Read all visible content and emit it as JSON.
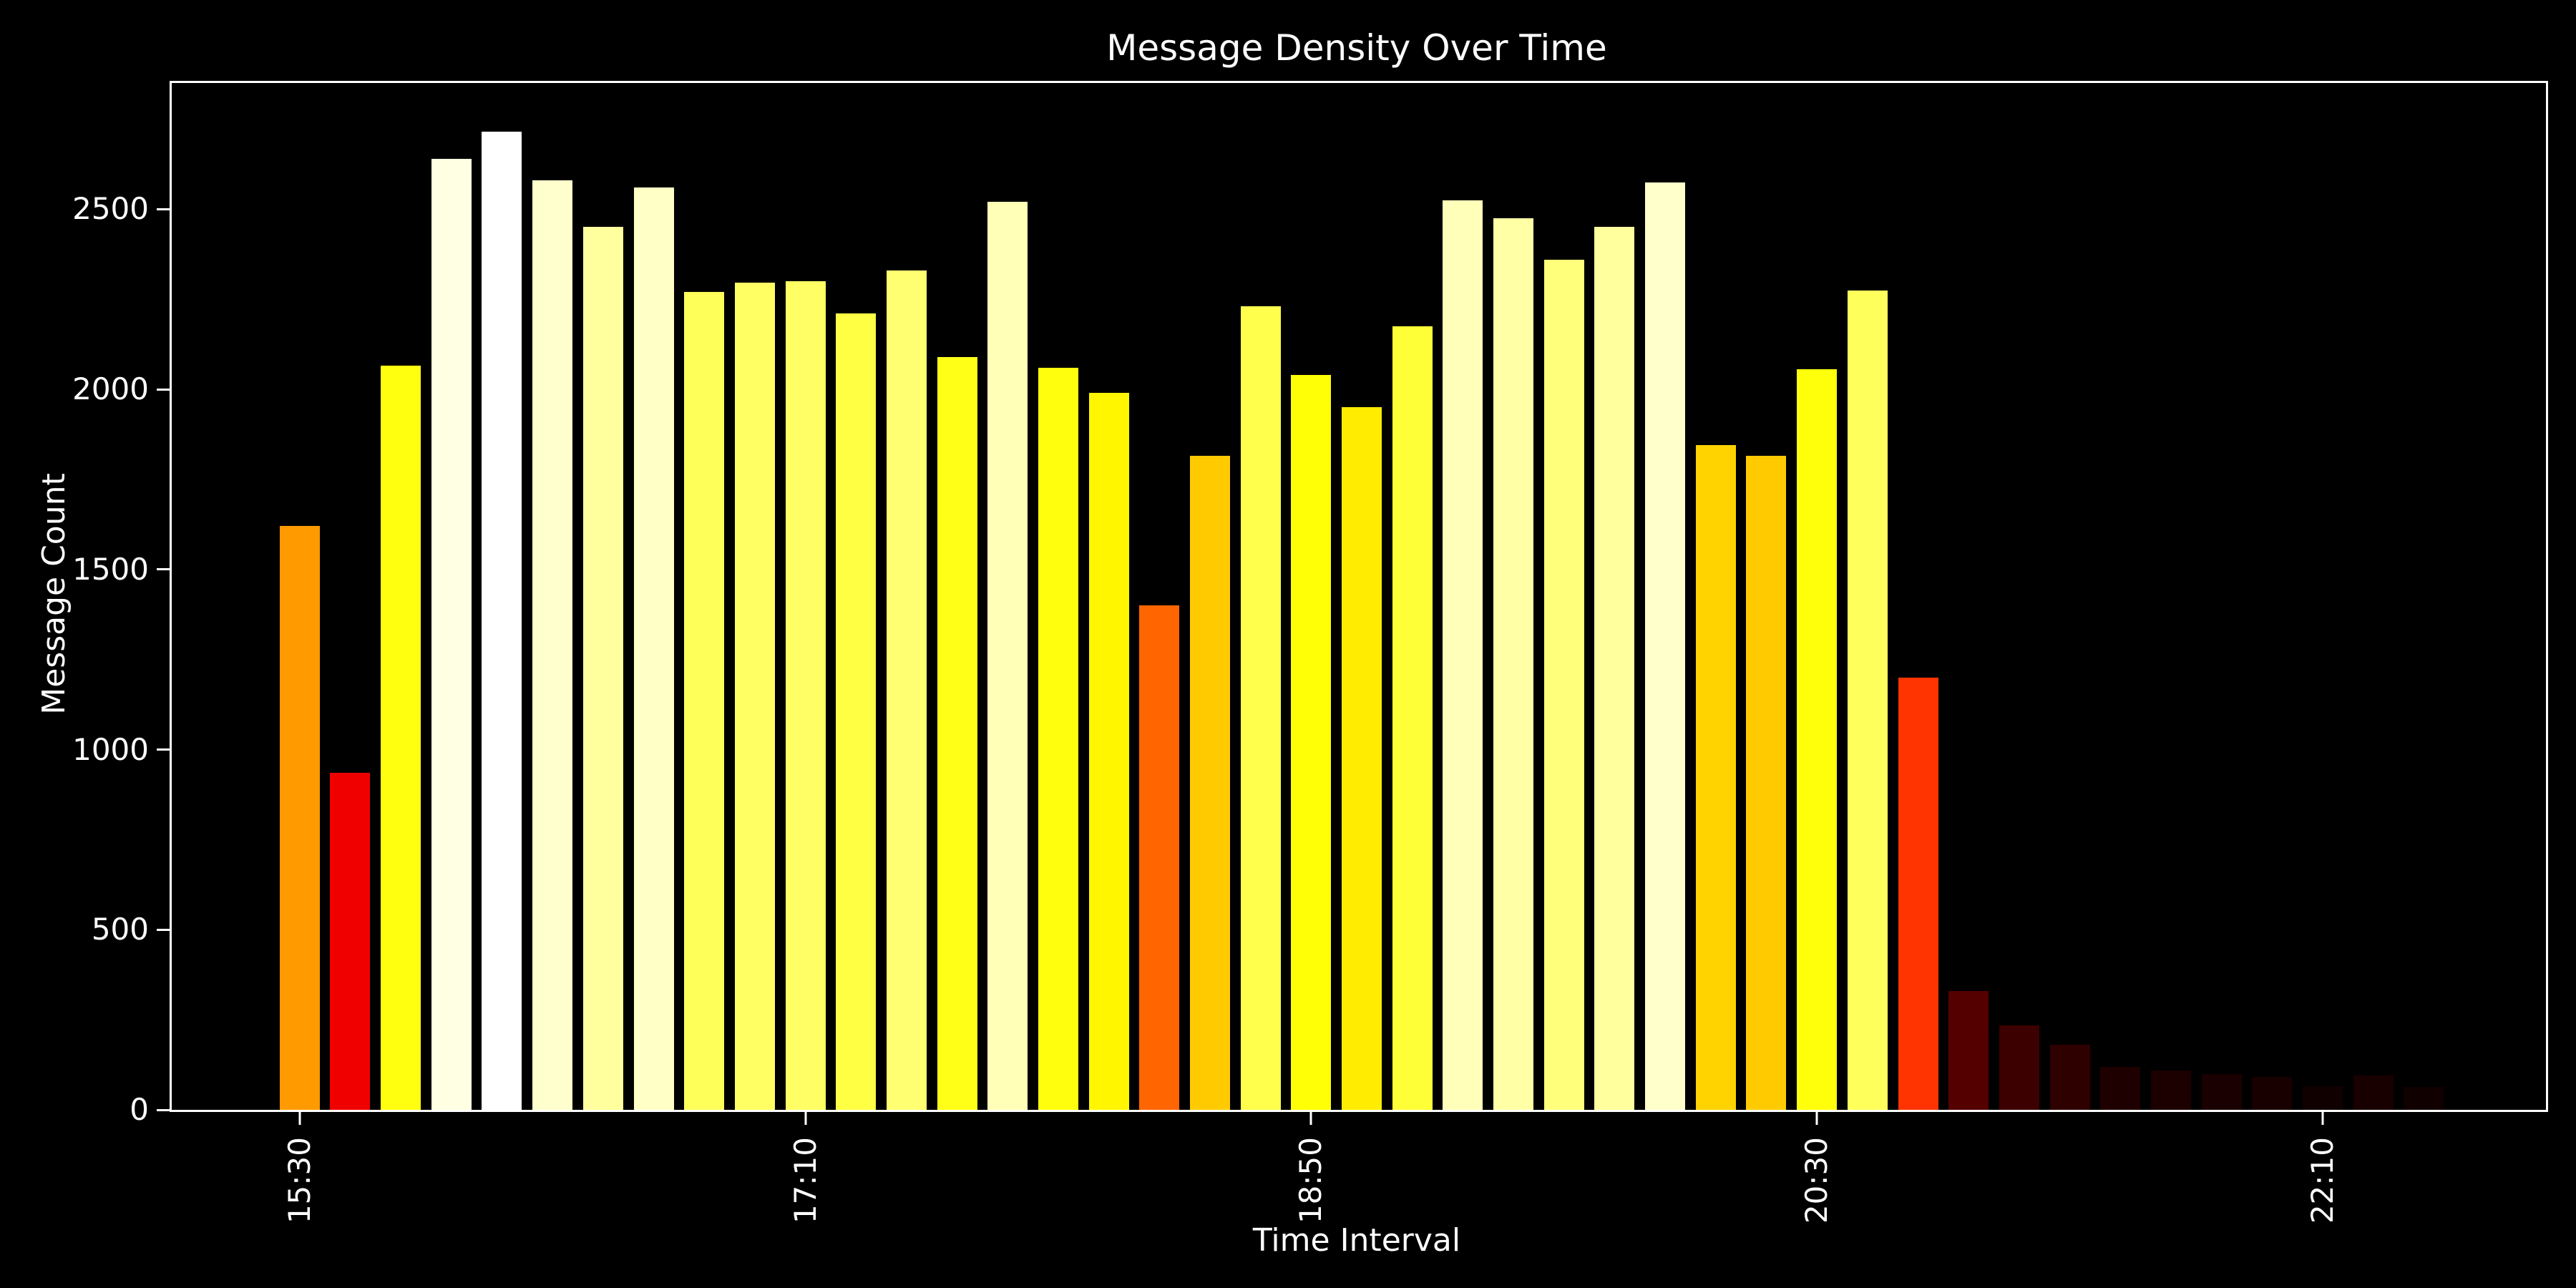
{
  "chart_data": {
    "type": "bar",
    "title": "Message Density Over Time",
    "xlabel": "Time Interval",
    "ylabel": "Message Count",
    "ylim": [
      0,
      2850
    ],
    "yticks": [
      0,
      500,
      1000,
      1500,
      2000,
      2500
    ],
    "xtick_labels": [
      "15:30",
      "17:10",
      "18:50",
      "20:30",
      "22:10"
    ],
    "xtick_indices": [
      0,
      10,
      20,
      30,
      40
    ],
    "grid": false,
    "legend_position": "none",
    "colormap": "hot",
    "background_color": "#000000",
    "text_color": "#ffffff",
    "spine_color": "#ffffff",
    "categories": [
      "15:30",
      "15:40",
      "15:50",
      "16:00",
      "16:10",
      "16:20",
      "16:30",
      "16:40",
      "16:50",
      "17:00",
      "17:10",
      "17:20",
      "17:30",
      "17:40",
      "17:50",
      "18:00",
      "18:10",
      "18:20",
      "18:30",
      "18:40",
      "18:50",
      "19:00",
      "19:10",
      "19:20",
      "19:30",
      "19:40",
      "19:50",
      "20:00",
      "20:10",
      "20:20",
      "20:30",
      "20:40",
      "20:50",
      "21:00",
      "21:10",
      "21:20",
      "21:30",
      "21:40",
      "21:50",
      "22:00",
      "22:10",
      "22:20",
      "22:30"
    ],
    "values": [
      1620,
      935,
      2065,
      2640,
      2715,
      2580,
      2450,
      2560,
      2270,
      2295,
      2300,
      2210,
      2330,
      2090,
      2520,
      2060,
      1990,
      1400,
      1815,
      2230,
      2040,
      1950,
      2175,
      2525,
      2475,
      2360,
      2450,
      2575,
      1845,
      1815,
      2055,
      2275,
      1200,
      330,
      235,
      180,
      120,
      110,
      100,
      92,
      65,
      96,
      63
    ]
  }
}
